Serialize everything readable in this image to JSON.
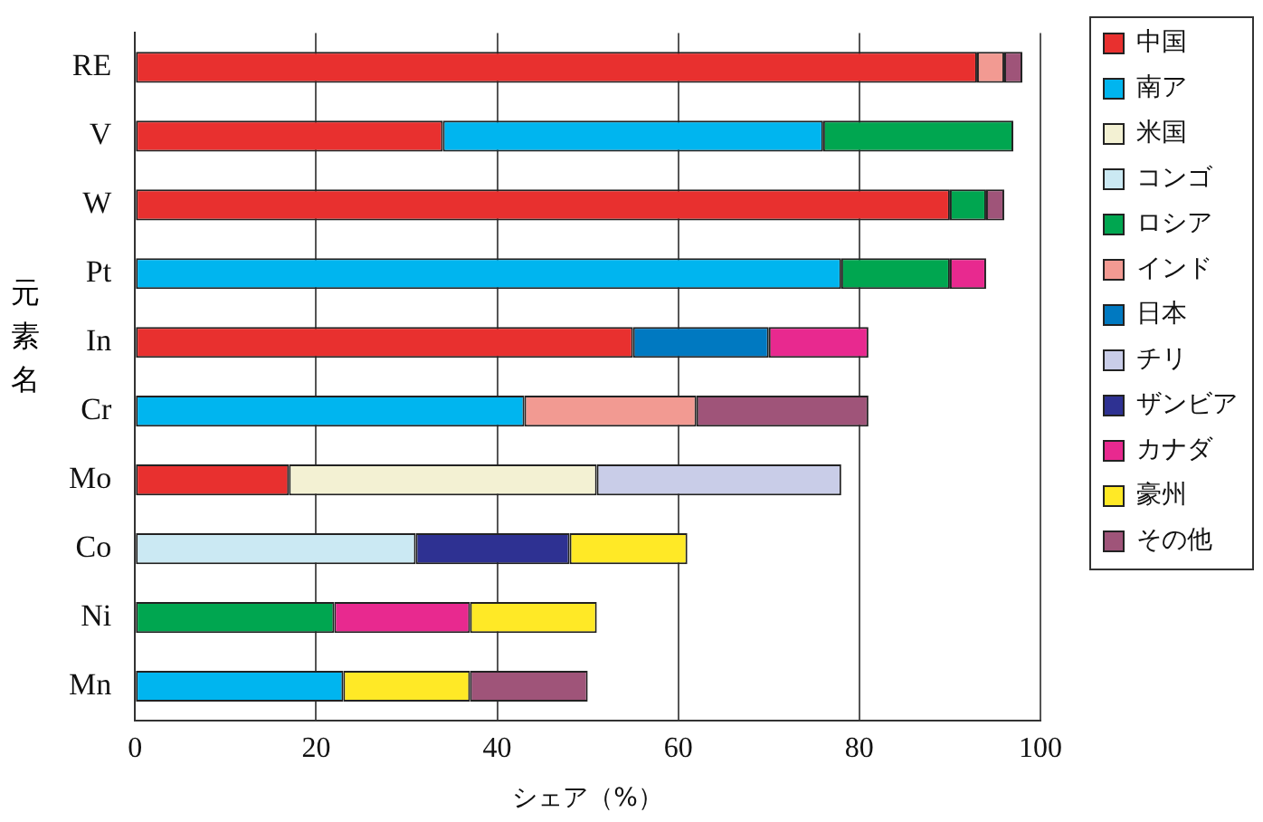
{
  "chart_data": {
    "type": "bar",
    "orientation": "horizontal",
    "stacked": true,
    "xlabel": "シェア（%）",
    "ylabel": "元素名",
    "categories": [
      "RE",
      "V",
      "W",
      "Pt",
      "In",
      "Cr",
      "Mo",
      "Co",
      "Ni",
      "Mn"
    ],
    "series": [
      {
        "name": "中国",
        "color": "#e8302f",
        "values": [
          93,
          34,
          90,
          null,
          55,
          null,
          17,
          null,
          null,
          null
        ]
      },
      {
        "name": "南ア",
        "color": "#00b5ef",
        "values": [
          null,
          42,
          null,
          78,
          null,
          43,
          null,
          null,
          null,
          23
        ]
      },
      {
        "name": "米国",
        "color": "#f3f1d3",
        "values": [
          null,
          null,
          null,
          null,
          null,
          null,
          34,
          null,
          null,
          null
        ]
      },
      {
        "name": "コンゴ",
        "color": "#cbe9f3",
        "values": [
          null,
          null,
          null,
          null,
          null,
          null,
          null,
          31,
          null,
          null
        ]
      },
      {
        "name": "ロシア",
        "color": "#00a650",
        "values": [
          null,
          21,
          4,
          12,
          null,
          null,
          null,
          null,
          22,
          null
        ]
      },
      {
        "name": "インド",
        "color": "#f29a92",
        "values": [
          3,
          null,
          null,
          null,
          null,
          19,
          null,
          null,
          null,
          null
        ]
      },
      {
        "name": "日本",
        "color": "#0079c1",
        "values": [
          null,
          null,
          null,
          null,
          15,
          null,
          null,
          null,
          null,
          null
        ]
      },
      {
        "name": "チリ",
        "color": "#c9cde8",
        "values": [
          null,
          null,
          null,
          null,
          null,
          null,
          27,
          null,
          null,
          null
        ]
      },
      {
        "name": "ザンビア",
        "color": "#2e3192",
        "values": [
          null,
          null,
          null,
          null,
          null,
          null,
          null,
          17,
          null,
          null
        ]
      },
      {
        "name": "カナダ",
        "color": "#e8298f",
        "values": [
          null,
          null,
          null,
          4,
          11,
          null,
          null,
          null,
          15,
          null
        ]
      },
      {
        "name": "豪州",
        "color": "#ffe926",
        "values": [
          null,
          null,
          null,
          null,
          null,
          null,
          null,
          13,
          14,
          14
        ]
      },
      {
        "name": "その他",
        "color": "#9f5479",
        "values": [
          2,
          null,
          2,
          null,
          null,
          19,
          null,
          null,
          null,
          13
        ]
      }
    ],
    "xlim": [
      0,
      100
    ],
    "xticks": [
      0,
      20,
      40,
      60,
      80,
      100
    ],
    "grid": "x",
    "legend": "right"
  }
}
